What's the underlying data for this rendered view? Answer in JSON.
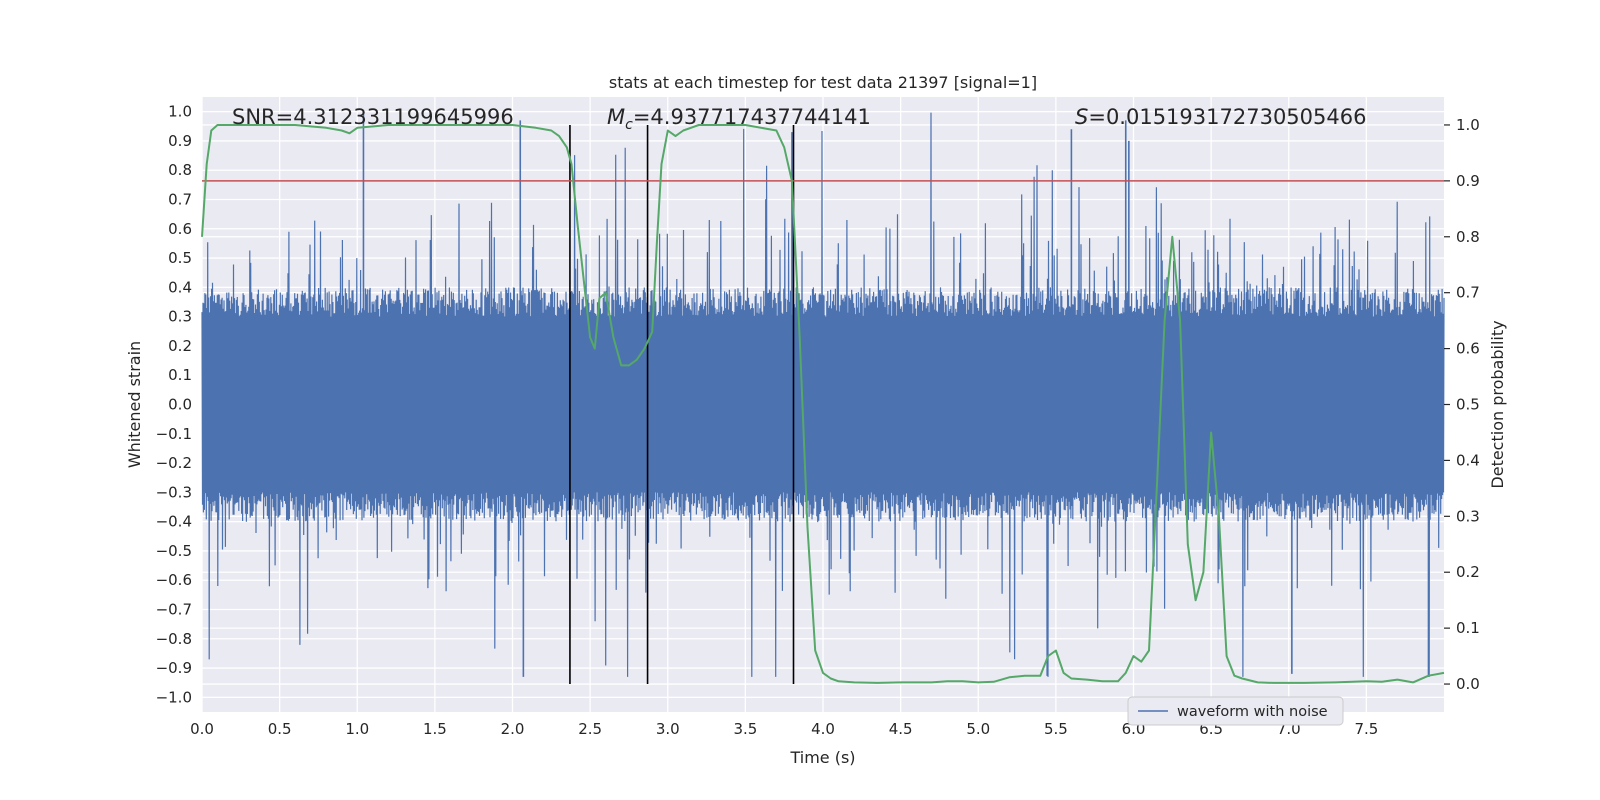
{
  "chart_data": {
    "type": "line",
    "title": "stats at each timestep for test data 21397 [signal=1]",
    "xlabel": "Time (s)",
    "ylabel_left": "Whitened strain",
    "ylabel_right": "Detection probability",
    "xlim": [
      0.0,
      8.0
    ],
    "ylim_left": [
      -1.05,
      1.05
    ],
    "ylim_right": [
      -0.05,
      1.05
    ],
    "grid": true,
    "x_ticks": [
      "0.0",
      "0.5",
      "1.0",
      "1.5",
      "2.0",
      "2.5",
      "3.0",
      "3.5",
      "4.0",
      "4.5",
      "5.0",
      "5.5",
      "6.0",
      "6.5",
      "7.0",
      "7.5"
    ],
    "left_ticks": [
      "1.0",
      "0.9",
      "0.8",
      "0.7",
      "0.6",
      "0.5",
      "0.4",
      "0.3",
      "0.2",
      "0.1",
      "0.0",
      "−0.1",
      "−0.2",
      "−0.3",
      "−0.4",
      "−0.5",
      "−0.6",
      "−0.7",
      "−0.8",
      "−0.9",
      "−1.0"
    ],
    "right_ticks": [
      "1.0",
      "0.9",
      "0.8",
      "0.7",
      "0.6",
      "0.5",
      "0.4",
      "0.3",
      "0.2",
      "0.1",
      "0.0"
    ],
    "annotations": {
      "snr": "SNR=4.312331199645996",
      "mc_symbol": "M",
      "mc_sub": "c",
      "mc_value": "=4.937717437744141",
      "s_symbol": "S",
      "s_value": "=0.015193172730505466"
    },
    "threshold": {
      "value": 0.9,
      "axis": "right",
      "color": "#c44e52"
    },
    "vertical_lines": [
      2.37,
      2.87,
      3.81
    ],
    "vertical_lines_ymax": 1.0,
    "waveform": {
      "name": "waveform with noise",
      "color": "#4c72b0",
      "duration": 8.0,
      "dense_amplitude": 0.4,
      "peak_max": 1.0,
      "peak_min": -0.93
    },
    "probability": {
      "name": "detection probability",
      "color": "#55a868",
      "x": [
        0.0,
        0.03,
        0.06,
        0.1,
        0.2,
        0.4,
        0.6,
        0.8,
        0.9,
        0.95,
        1.0,
        1.2,
        1.5,
        1.8,
        2.0,
        2.15,
        2.25,
        2.3,
        2.35,
        2.38,
        2.42,
        2.46,
        2.5,
        2.53,
        2.56,
        2.6,
        2.65,
        2.7,
        2.75,
        2.8,
        2.85,
        2.9,
        2.93,
        2.96,
        3.0,
        3.05,
        3.1,
        3.2,
        3.3,
        3.5,
        3.7,
        3.75,
        3.8,
        3.85,
        3.9,
        3.95,
        4.0,
        4.05,
        4.1,
        4.2,
        4.35,
        4.5,
        4.7,
        4.8,
        4.9,
        5.0,
        5.1,
        5.2,
        5.3,
        5.4,
        5.45,
        5.5,
        5.55,
        5.6,
        5.7,
        5.8,
        5.9,
        5.95,
        6.0,
        6.05,
        6.1,
        6.15,
        6.2,
        6.25,
        6.3,
        6.35,
        6.4,
        6.45,
        6.5,
        6.55,
        6.6,
        6.65,
        6.7,
        6.8,
        6.9,
        7.0,
        7.1,
        7.3,
        7.5,
        7.6,
        7.7,
        7.8,
        7.9,
        8.0
      ],
      "y": [
        0.8,
        0.93,
        0.99,
        1.0,
        1.0,
        1.0,
        1.0,
        0.995,
        0.99,
        0.985,
        0.995,
        1.0,
        1.0,
        1.0,
        1.0,
        0.995,
        0.99,
        0.98,
        0.96,
        0.93,
        0.82,
        0.72,
        0.62,
        0.6,
        0.69,
        0.7,
        0.62,
        0.57,
        0.57,
        0.58,
        0.6,
        0.63,
        0.79,
        0.93,
        0.99,
        0.98,
        0.99,
        1.0,
        1.0,
        1.0,
        0.99,
        0.96,
        0.9,
        0.62,
        0.28,
        0.06,
        0.02,
        0.01,
        0.005,
        0.003,
        0.002,
        0.003,
        0.003,
        0.005,
        0.005,
        0.003,
        0.004,
        0.012,
        0.015,
        0.015,
        0.05,
        0.06,
        0.02,
        0.01,
        0.008,
        0.005,
        0.005,
        0.02,
        0.05,
        0.04,
        0.06,
        0.35,
        0.65,
        0.8,
        0.65,
        0.25,
        0.15,
        0.2,
        0.45,
        0.3,
        0.05,
        0.015,
        0.01,
        0.003,
        0.002,
        0.002,
        0.002,
        0.003,
        0.005,
        0.004,
        0.008,
        0.003,
        0.015,
        0.02
      ]
    },
    "legend": {
      "label": "waveform with noise",
      "placement": "bottom-right"
    }
  }
}
